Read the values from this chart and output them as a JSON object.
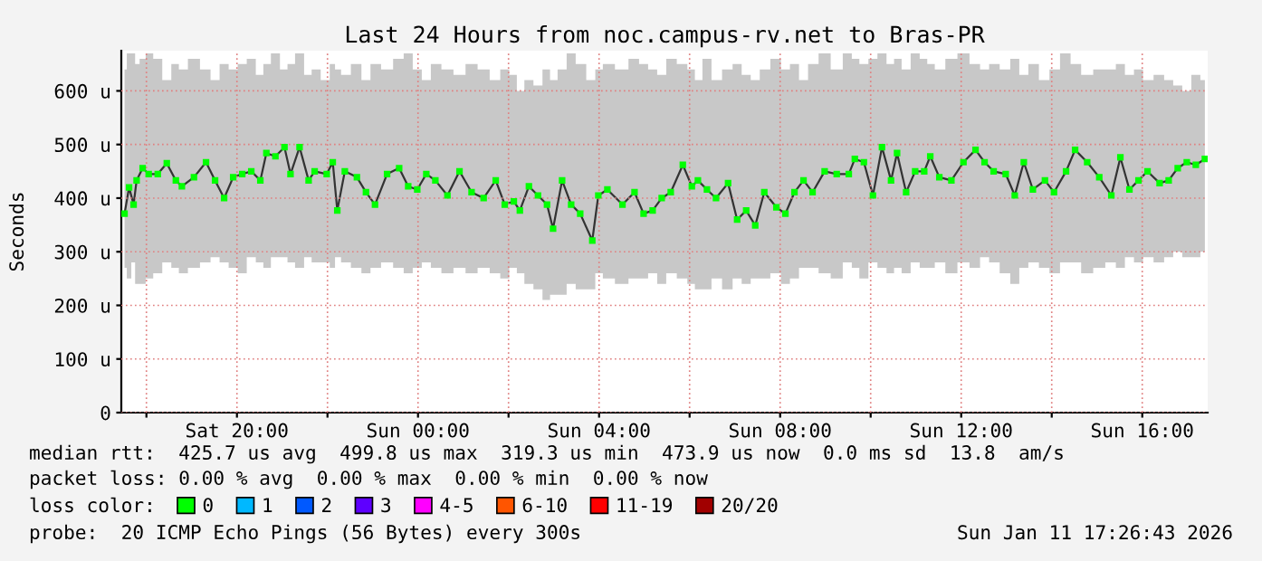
{
  "chart_data": {
    "type": "line",
    "title": "Last 24 Hours from noc.campus-rv.net to Bras-PR",
    "ylabel": "Seconds",
    "legend_title": "loss color:",
    "legend": "bottom",
    "marker": "square",
    "grid": true,
    "xlim": [
      "2026-01-10T17:26:43",
      "2026-01-11T17:26:43"
    ],
    "xticks": [
      {
        "value": "2026-01-10T18:00",
        "label": null
      },
      {
        "value": "2026-01-10T20:00",
        "label": "Sat 20:00"
      },
      {
        "value": "2026-01-10T22:00",
        "label": null
      },
      {
        "value": "2026-01-11T00:00",
        "label": "Sun 00:00"
      },
      {
        "value": "2026-01-11T02:00",
        "label": null
      },
      {
        "value": "2026-01-11T04:00",
        "label": "Sun 04:00"
      },
      {
        "value": "2026-01-11T06:00",
        "label": null
      },
      {
        "value": "2026-01-11T08:00",
        "label": "Sun 08:00"
      },
      {
        "value": "2026-01-11T10:00",
        "label": null
      },
      {
        "value": "2026-01-11T12:00",
        "label": "Sun 12:00"
      },
      {
        "value": "2026-01-11T14:00",
        "label": null
      },
      {
        "value": "2026-01-11T16:00",
        "label": "Sun 16:00"
      }
    ],
    "ylim": [
      0,
      675
    ],
    "yticks": [
      0,
      {
        "value": 100,
        "label": "100 u"
      },
      {
        "value": 200,
        "label": "200 u"
      },
      {
        "value": 300,
        "label": "300 u"
      },
      {
        "value": 400,
        "label": "400 u"
      },
      {
        "value": 500,
        "label": "500 u"
      },
      {
        "value": 600,
        "label": "600 u"
      }
    ],
    "annotations": [
      "median rtt:  425.7 us avg  499.8 us max  319.3 us min  473.9 us now  0.0 ms sd  13.8  am/s",
      "packet loss: 0.00 % avg  0.00 % max  0.00 % min  0.00 % now",
      "probe:  20 ICMP Echo Pings (56 Bytes) every 300s",
      "Sun Jan 11 17:26:43 2026"
    ],
    "series": [
      {
        "name": "0",
        "color": "#00ff00",
        "x": [
          "2026-01-10T17:31",
          "2026-01-10T17:37",
          "2026-01-10T17:43",
          "2026-01-10T17:47",
          "2026-01-10T17:55",
          "2026-01-10T18:03",
          "2026-01-10T18:15",
          "2026-01-10T18:27",
          "2026-01-10T18:39",
          "2026-01-10T18:47",
          "2026-01-10T19:03",
          "2026-01-10T19:19",
          "2026-01-10T19:31",
          "2026-01-10T19:43",
          "2026-01-10T19:55",
          "2026-01-10T20:07",
          "2026-01-10T20:19",
          "2026-01-10T20:31",
          "2026-01-10T20:39",
          "2026-01-10T20:51",
          "2026-01-10T21:03",
          "2026-01-10T21:11",
          "2026-01-10T21:23",
          "2026-01-10T21:35",
          "2026-01-10T21:43",
          "2026-01-10T21:59",
          "2026-01-10T22:07",
          "2026-01-10T22:13",
          "2026-01-10T22:23",
          "2026-01-10T22:39",
          "2026-01-10T22:51",
          "2026-01-10T23:03",
          "2026-01-10T23:19",
          "2026-01-10T23:35",
          "2026-01-10T23:47",
          "2026-01-10T23:59",
          "2026-01-11T00:11",
          "2026-01-11T00:23",
          "2026-01-11T00:39",
          "2026-01-11T00:55",
          "2026-01-11T01:11",
          "2026-01-11T01:27",
          "2026-01-11T01:43",
          "2026-01-11T01:55",
          "2026-01-11T02:07",
          "2026-01-11T02:15",
          "2026-01-11T02:27",
          "2026-01-11T02:39",
          "2026-01-11T02:51",
          "2026-01-11T02:59",
          "2026-01-11T03:11",
          "2026-01-11T03:23",
          "2026-01-11T03:35",
          "2026-01-11T03:51",
          "2026-01-11T03:59",
          "2026-01-11T04:11",
          "2026-01-11T04:31",
          "2026-01-11T04:47",
          "2026-01-11T04:59",
          "2026-01-11T05:11",
          "2026-01-11T05:23",
          "2026-01-11T05:35",
          "2026-01-11T05:51",
          "2026-01-11T06:03",
          "2026-01-11T06:11",
          "2026-01-11T06:23",
          "2026-01-11T06:35",
          "2026-01-11T06:51",
          "2026-01-11T07:03",
          "2026-01-11T07:15",
          "2026-01-11T07:27",
          "2026-01-11T07:39",
          "2026-01-11T07:55",
          "2026-01-11T08:07",
          "2026-01-11T08:19",
          "2026-01-11T08:31",
          "2026-01-11T08:43",
          "2026-01-11T08:59",
          "2026-01-11T09:15",
          "2026-01-11T09:31",
          "2026-01-11T09:39",
          "2026-01-11T09:51",
          "2026-01-11T10:03",
          "2026-01-11T10:15",
          "2026-01-11T10:27",
          "2026-01-11T10:35",
          "2026-01-11T10:47",
          "2026-01-11T10:59",
          "2026-01-11T11:11",
          "2026-01-11T11:19",
          "2026-01-11T11:31",
          "2026-01-11T11:47",
          "2026-01-11T12:03",
          "2026-01-11T12:19",
          "2026-01-11T12:31",
          "2026-01-11T12:43",
          "2026-01-11T12:59",
          "2026-01-11T13:11",
          "2026-01-11T13:23",
          "2026-01-11T13:35",
          "2026-01-11T13:51",
          "2026-01-11T14:03",
          "2026-01-11T14:19",
          "2026-01-11T14:31",
          "2026-01-11T14:47",
          "2026-01-11T15:03",
          "2026-01-11T15:19",
          "2026-01-11T15:31",
          "2026-01-11T15:43",
          "2026-01-11T15:55",
          "2026-01-11T16:07",
          "2026-01-11T16:23",
          "2026-01-11T16:35",
          "2026-01-11T16:47",
          "2026-01-11T16:59",
          "2026-01-11T17:11",
          "2026-01-11T17:23"
        ],
        "values": [
          371,
          420,
          388,
          433,
          456,
          445,
          445,
          465,
          433,
          422,
          439,
          467,
          433,
          400,
          439,
          445,
          450,
          433,
          484,
          478,
          495,
          445,
          495,
          433,
          450,
          445,
          467,
          377,
          450,
          439,
          411,
          388,
          445,
          456,
          422,
          416,
          445,
          433,
          405,
          450,
          411,
          400,
          433,
          388,
          394,
          377,
          422,
          405,
          388,
          343,
          433,
          388,
          371,
          321,
          405,
          416,
          388,
          411,
          371,
          377,
          400,
          411,
          462,
          422,
          433,
          416,
          400,
          428,
          360,
          377,
          349,
          411,
          383,
          371,
          411,
          433,
          411,
          450,
          445,
          445,
          473,
          467,
          405,
          495,
          433,
          484,
          411,
          450,
          450,
          478,
          439,
          433,
          467,
          490,
          467,
          450,
          445,
          405,
          467,
          416,
          433,
          411,
          450,
          490,
          467,
          439,
          405,
          476,
          416,
          433,
          450,
          428,
          433,
          456,
          467,
          462,
          473
        ],
        "lower": [
          270,
          250,
          280,
          240,
          240,
          250,
          260,
          280,
          270,
          260,
          270,
          280,
          290,
          280,
          270,
          260,
          290,
          280,
          270,
          290,
          290,
          280,
          270,
          290,
          280,
          280,
          270,
          290,
          280,
          270,
          260,
          270,
          280,
          270,
          260,
          270,
          280,
          270,
          260,
          270,
          260,
          270,
          260,
          250,
          270,
          260,
          240,
          230,
          210,
          220,
          220,
          240,
          230,
          230,
          260,
          250,
          240,
          250,
          250,
          260,
          240,
          260,
          250,
          240,
          230,
          230,
          250,
          230,
          250,
          240,
          250,
          250,
          260,
          240,
          250,
          270,
          270,
          260,
          250,
          280,
          270,
          250,
          280,
          270,
          260,
          270,
          260,
          280,
          270,
          270,
          280,
          260,
          280,
          270,
          290,
          280,
          260,
          240,
          270,
          280,
          270,
          260,
          280,
          280,
          260,
          270,
          280,
          270,
          290,
          280,
          290,
          280,
          290,
          300,
          290,
          290,
          300
        ],
        "upper": [
          640,
          670,
          670,
          650,
          660,
          670,
          660,
          620,
          650,
          640,
          660,
          640,
          620,
          650,
          640,
          650,
          660,
          630,
          650,
          670,
          640,
          650,
          670,
          630,
          640,
          620,
          650,
          640,
          630,
          650,
          620,
          650,
          640,
          660,
          670,
          640,
          620,
          650,
          640,
          630,
          650,
          640,
          620,
          640,
          630,
          600,
          620,
          610,
          640,
          620,
          640,
          670,
          650,
          620,
          640,
          650,
          640,
          660,
          650,
          640,
          630,
          660,
          650,
          640,
          620,
          660,
          620,
          640,
          650,
          630,
          620,
          640,
          660,
          640,
          650,
          620,
          650,
          670,
          640,
          670,
          660,
          650,
          660,
          670,
          650,
          660,
          640,
          670,
          660,
          650,
          640,
          660,
          670,
          650,
          640,
          650,
          640,
          660,
          630,
          650,
          620,
          640,
          670,
          650,
          630,
          640,
          640,
          650,
          630,
          640,
          620,
          630,
          620,
          610,
          600,
          630,
          620
        ]
      },
      {
        "name": "1",
        "color": "#00b8ff"
      },
      {
        "name": "2",
        "color": "#0059ff"
      },
      {
        "name": "3",
        "color": "#5e00ff"
      },
      {
        "name": "4-5",
        "color": "#ff00ff"
      },
      {
        "name": "6-10",
        "color": "#ff5500"
      },
      {
        "name": "11-19",
        "color": "#ff0000"
      },
      {
        "name": "20/20",
        "color": "#a10000"
      }
    ]
  }
}
